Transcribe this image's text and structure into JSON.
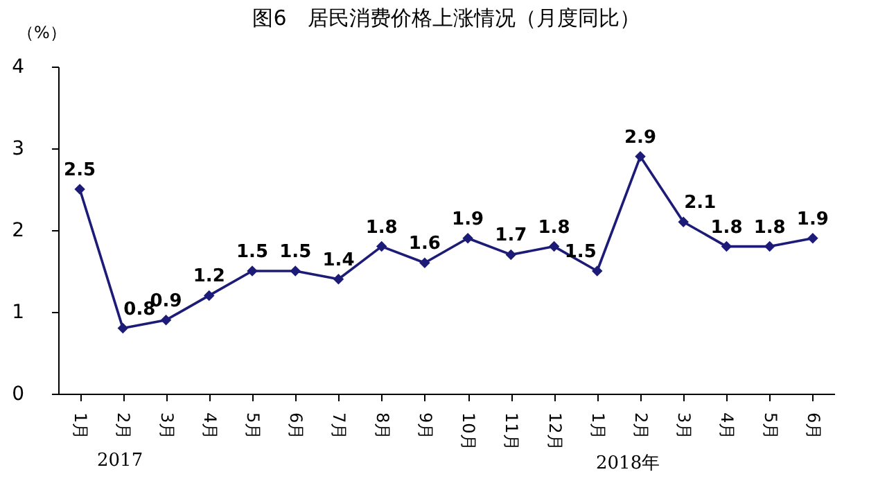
{
  "chart_data": {
    "type": "line",
    "title": "图6　居民消费价格上涨情况（月度同比）",
    "ylabel": "（%）",
    "categories": [
      "1月",
      "2月",
      "3月",
      "4月",
      "5月",
      "6月",
      "7月",
      "8月",
      "9月",
      "10月",
      "11月",
      "12月",
      "1月",
      "2月",
      "3月",
      "4月",
      "5月",
      "6月"
    ],
    "series": [
      {
        "color": "#1c1c78",
        "values": [
          2.5,
          0.8,
          0.9,
          1.2,
          1.5,
          1.5,
          1.4,
          1.8,
          1.6,
          1.9,
          1.7,
          1.8,
          1.5,
          2.9,
          2.1,
          1.8,
          1.8,
          1.9
        ]
      }
    ],
    "ylim": [
      0,
      4
    ],
    "yticks": [
      0,
      1,
      2,
      3,
      4
    ],
    "grid": false,
    "marker": "diamond",
    "line_style": "solid",
    "data_labels": true,
    "annotations": [
      "2017",
      "2018年"
    ]
  }
}
